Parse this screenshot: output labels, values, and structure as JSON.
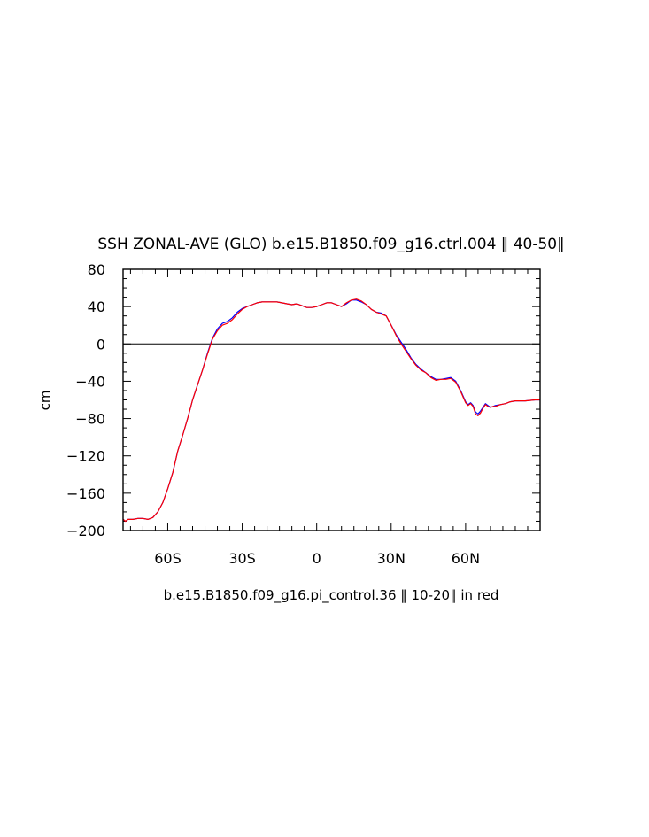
{
  "chart_data": {
    "type": "line",
    "title": "SSH ZONAL-AVE (GLO) b.e15.B1850.f09_g16.ctrl.004 ‖ 40-50‖",
    "subtitle": "b.e15.B1850.f09_g16.pi_control.36 ‖ 10-20‖ in red",
    "xlabel": "",
    "ylabel": "cm",
    "xlim": [
      -78,
      90
    ],
    "ylim": [
      -200,
      80
    ],
    "xticks": [
      -60,
      -30,
      0,
      30,
      60
    ],
    "xtick_labels": [
      "60S",
      "30S",
      "0",
      "30N",
      "60N"
    ],
    "yticks": [
      -200,
      -160,
      -120,
      -80,
      -40,
      0,
      40,
      80
    ],
    "ytick_labels": [
      "−200",
      "−160",
      "−120",
      "−80",
      "−40",
      "0",
      "40",
      "80"
    ],
    "zero_line": true,
    "grid": false,
    "series": [
      {
        "color": "#0000ff",
        "x": [
          -78,
          -77,
          -76,
          -74,
          -72,
          -70,
          -68,
          -66,
          -64,
          -62,
          -60,
          -58,
          -56,
          -54,
          -52,
          -50,
          -48,
          -46,
          -44,
          -42,
          -40,
          -38,
          -36,
          -34,
          -32,
          -30,
          -28,
          -26,
          -24,
          -22,
          -20,
          -18,
          -16,
          -14,
          -12,
          -10,
          -8,
          -6,
          -4,
          -2,
          0,
          2,
          4,
          6,
          8,
          10,
          12,
          14,
          16,
          18,
          20,
          22,
          24,
          26,
          28,
          30,
          32,
          34,
          36,
          38,
          40,
          42,
          44,
          46,
          48,
          50,
          52,
          54,
          56,
          58,
          60,
          61,
          62,
          63,
          64,
          65,
          66,
          67,
          68,
          69,
          70,
          71,
          72,
          74,
          76,
          78,
          80,
          84,
          88,
          90
        ],
        "y": [
          -188,
          -190,
          -188,
          -188,
          -187,
          -187,
          -188,
          -186,
          -180,
          -170,
          -155,
          -138,
          -115,
          -98,
          -80,
          -60,
          -44,
          -28,
          -10,
          6,
          16,
          22,
          24,
          28,
          34,
          38,
          40,
          42,
          44,
          45,
          45,
          45,
          45,
          44,
          43,
          42,
          43,
          41,
          39,
          39,
          40,
          42,
          44,
          44,
          42,
          40,
          43,
          47,
          47,
          45,
          42,
          37,
          34,
          33,
          30,
          20,
          10,
          2,
          -6,
          -15,
          -22,
          -27,
          -31,
          -35,
          -38,
          -38,
          -37,
          -36,
          -40,
          -50,
          -62,
          -65,
          -63,
          -66,
          -73,
          -75,
          -72,
          -68,
          -64,
          -66,
          -68,
          -67,
          -66,
          -65,
          -64,
          -62,
          -61,
          -61,
          -60,
          -60
        ]
      },
      {
        "color": "#ff0000",
        "x": [
          -78,
          -77,
          -76,
          -74,
          -72,
          -70,
          -68,
          -66,
          -64,
          -62,
          -60,
          -58,
          -56,
          -54,
          -52,
          -50,
          -48,
          -46,
          -44,
          -42,
          -40,
          -38,
          -36,
          -34,
          -32,
          -30,
          -28,
          -26,
          -24,
          -22,
          -20,
          -18,
          -16,
          -14,
          -12,
          -10,
          -8,
          -6,
          -4,
          -2,
          0,
          2,
          4,
          6,
          8,
          10,
          12,
          14,
          16,
          18,
          20,
          22,
          24,
          26,
          28,
          30,
          32,
          34,
          36,
          38,
          40,
          42,
          44,
          46,
          48,
          50,
          52,
          54,
          56,
          58,
          60,
          61,
          62,
          63,
          64,
          65,
          66,
          67,
          68,
          69,
          70,
          71,
          72,
          74,
          76,
          78,
          80,
          84,
          88,
          90
        ],
        "y": [
          -188,
          -190,
          -188,
          -188,
          -187,
          -187,
          -188,
          -186,
          -180,
          -170,
          -155,
          -138,
          -115,
          -98,
          -80,
          -60,
          -44,
          -28,
          -11,
          5,
          14,
          20,
          22,
          26,
          32,
          37,
          40,
          42,
          44,
          45,
          45,
          45,
          45,
          44,
          43,
          42,
          43,
          41,
          39,
          39,
          40,
          42,
          44,
          44,
          42,
          40,
          44,
          47,
          48,
          46,
          42,
          37,
          34,
          32,
          30,
          20,
          9,
          0,
          -8,
          -16,
          -23,
          -28,
          -31,
          -36,
          -39,
          -38,
          -38,
          -37,
          -41,
          -51,
          -63,
          -66,
          -64,
          -67,
          -75,
          -77,
          -74,
          -69,
          -65,
          -67,
          -68,
          -67,
          -67,
          -65,
          -64,
          -62,
          -61,
          -61,
          -60,
          -60
        ]
      }
    ]
  }
}
